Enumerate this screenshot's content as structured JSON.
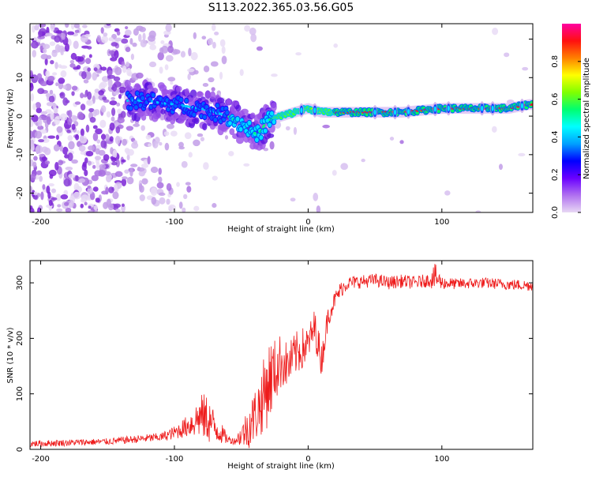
{
  "title": "S113.2022.365.03.56.G05",
  "colors": {
    "snr_line": "#ee1c1c",
    "spectro_purple": "#8a2be2",
    "colorbar": [
      "#e8d8f4",
      "#b070f0",
      "#6a00ff",
      "#0000ff",
      "#00a0ff",
      "#00ffff",
      "#00ff70",
      "#80ff00",
      "#ffff00",
      "#ff8000",
      "#ff1010",
      "#ff00a0"
    ]
  },
  "chart_data": [
    {
      "type": "heatmap",
      "name": "spectrogram",
      "xlabel": "Height of straight line (km)",
      "ylabel": "Frequency (Hz)",
      "xlim": [
        -208,
        168
      ],
      "ylim": [
        -25,
        24
      ],
      "xticks": [
        -200,
        -100,
        0,
        100
      ],
      "xtick_labels": [
        "-200",
        "-100",
        "0",
        "100"
      ],
      "yticks": [
        -20,
        -10,
        0,
        10,
        20
      ],
      "ytick_labels": [
        "-20",
        "-10",
        "0",
        "10",
        "20"
      ],
      "ridge": {
        "x": [
          -135,
          -120,
          -100,
          -80,
          -60,
          -45,
          -38,
          -30,
          -20,
          -10,
          0,
          10,
          20,
          50,
          70,
          100,
          130,
          150,
          165
        ],
        "y": [
          4,
          4,
          3,
          2,
          0,
          -3,
          -5,
          -1,
          0,
          1,
          2,
          1,
          1,
          1,
          1,
          2,
          2,
          2,
          3
        ]
      },
      "colorbar": {
        "label": "Normalized spectral amplitude",
        "range": [
          0,
          1
        ],
        "ticks": [
          0,
          0.2,
          0.4,
          0.6,
          0.8
        ],
        "tick_labels": [
          "0.0",
          "0.2",
          "0.4",
          "0.6",
          "0.8"
        ]
      }
    },
    {
      "type": "line",
      "name": "snr",
      "xlabel": "Height of straight line (km)",
      "ylabel": "SNR (10 * v/v)",
      "xlim": [
        -208,
        168
      ],
      "ylim": [
        0,
        340
      ],
      "xticks": [
        -200,
        -100,
        0,
        100
      ],
      "xtick_labels": [
        "-200",
        "-100",
        "0",
        "100"
      ],
      "yticks": [
        0,
        100,
        200,
        300
      ],
      "ytick_labels": [
        "0",
        "100",
        "200",
        "300"
      ],
      "series": [
        {
          "name": "SNR",
          "x": [
            -208,
            -180,
            -150,
            -130,
            -110,
            -100,
            -90,
            -80,
            -75,
            -70,
            -60,
            -55,
            -50,
            -45,
            -40,
            -35,
            -30,
            -25,
            -20,
            -15,
            -10,
            -5,
            0,
            5,
            10,
            15,
            20,
            25,
            30,
            40,
            50,
            60,
            70,
            80,
            90,
            95,
            100,
            110,
            130,
            150,
            168
          ],
          "y": [
            10,
            12,
            14,
            18,
            22,
            30,
            42,
            60,
            55,
            40,
            18,
            15,
            25,
            40,
            60,
            85,
            120,
            140,
            160,
            150,
            170,
            180,
            190,
            220,
            160,
            240,
            270,
            290,
            300,
            302,
            305,
            300,
            303,
            300,
            305,
            310,
            300,
            298,
            300,
            297,
            295
          ],
          "noise_amplitude": [
            6,
            6,
            6,
            7,
            8,
            12,
            20,
            40,
            45,
            30,
            8,
            6,
            20,
            40,
            50,
            60,
            80,
            60,
            50,
            40,
            40,
            40,
            30,
            35,
            30,
            20,
            15,
            15,
            12,
            12,
            12,
            12,
            12,
            12,
            12,
            25,
            12,
            10,
            10,
            10,
            10
          ]
        }
      ]
    }
  ]
}
